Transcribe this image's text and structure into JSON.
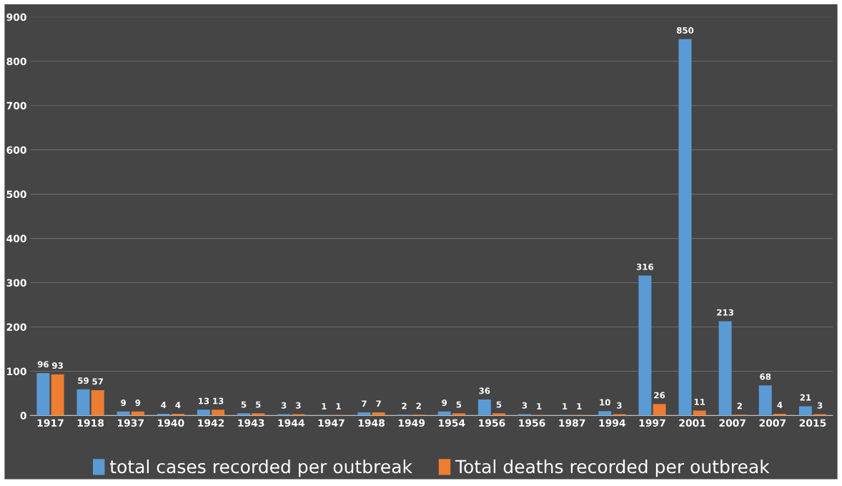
{
  "chart_data": {
    "type": "bar",
    "categories": [
      "1917",
      "1918",
      "1937",
      "1940",
      "1942",
      "1943",
      "1944",
      "1947",
      "1948",
      "1949",
      "1954",
      "1956",
      "1956",
      "1987",
      "1994",
      "1997",
      "2001",
      "2007",
      "2007",
      "2015"
    ],
    "series": [
      {
        "name": "total cases recorded per outbreak",
        "color": "#5b9bd5",
        "values": [
          96,
          59,
          9,
          4,
          13,
          5,
          3,
          1,
          7,
          2,
          9,
          36,
          3,
          1,
          10,
          316,
          850,
          213,
          68,
          21
        ]
      },
      {
        "name": "Total deaths recorded per outbreak",
        "color": "#ed7d31",
        "values": [
          93,
          57,
          9,
          4,
          13,
          5,
          3,
          1,
          7,
          2,
          5,
          5,
          1,
          1,
          3,
          26,
          11,
          2,
          4,
          3
        ]
      }
    ],
    "ylim": [
      0,
      900
    ],
    "yticks": [
      0,
      100,
      200,
      300,
      400,
      500,
      600,
      700,
      800,
      900
    ],
    "grid": "y",
    "legend": "bottom",
    "data_labels": true
  }
}
